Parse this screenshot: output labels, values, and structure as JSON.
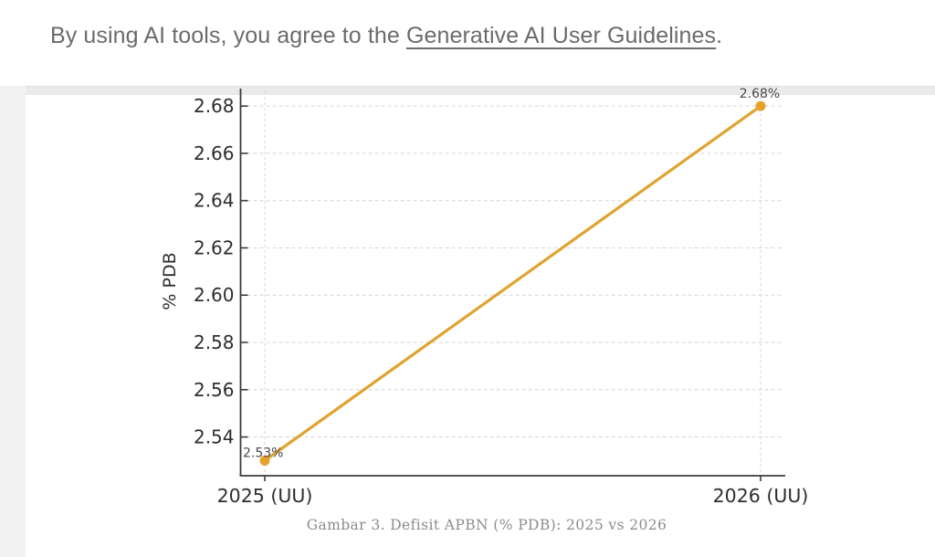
{
  "banner": {
    "text_prefix": "By using AI tools, you agree to the ",
    "link_text": "Generative AI User Guidelines",
    "text_suffix": "."
  },
  "chart_data": {
    "type": "line",
    "caption": "Gambar 3. Defisit APBN (% PDB): 2025 vs 2026",
    "categories": [
      "2025 (UU)",
      "2026 (UU)"
    ],
    "values": [
      2.53,
      2.68
    ],
    "point_labels": [
      "2.53%",
      "2.68%"
    ],
    "xlabel": "",
    "ylabel": "% PDB",
    "yticks": [
      2.54,
      2.56,
      2.58,
      2.6,
      2.62,
      2.64,
      2.66,
      2.68
    ],
    "ylim": [
      2.5236,
      2.6874
    ],
    "grid": true,
    "legend": "none",
    "line_color": "#DFA42F",
    "marker_color": "#E5A22B"
  }
}
